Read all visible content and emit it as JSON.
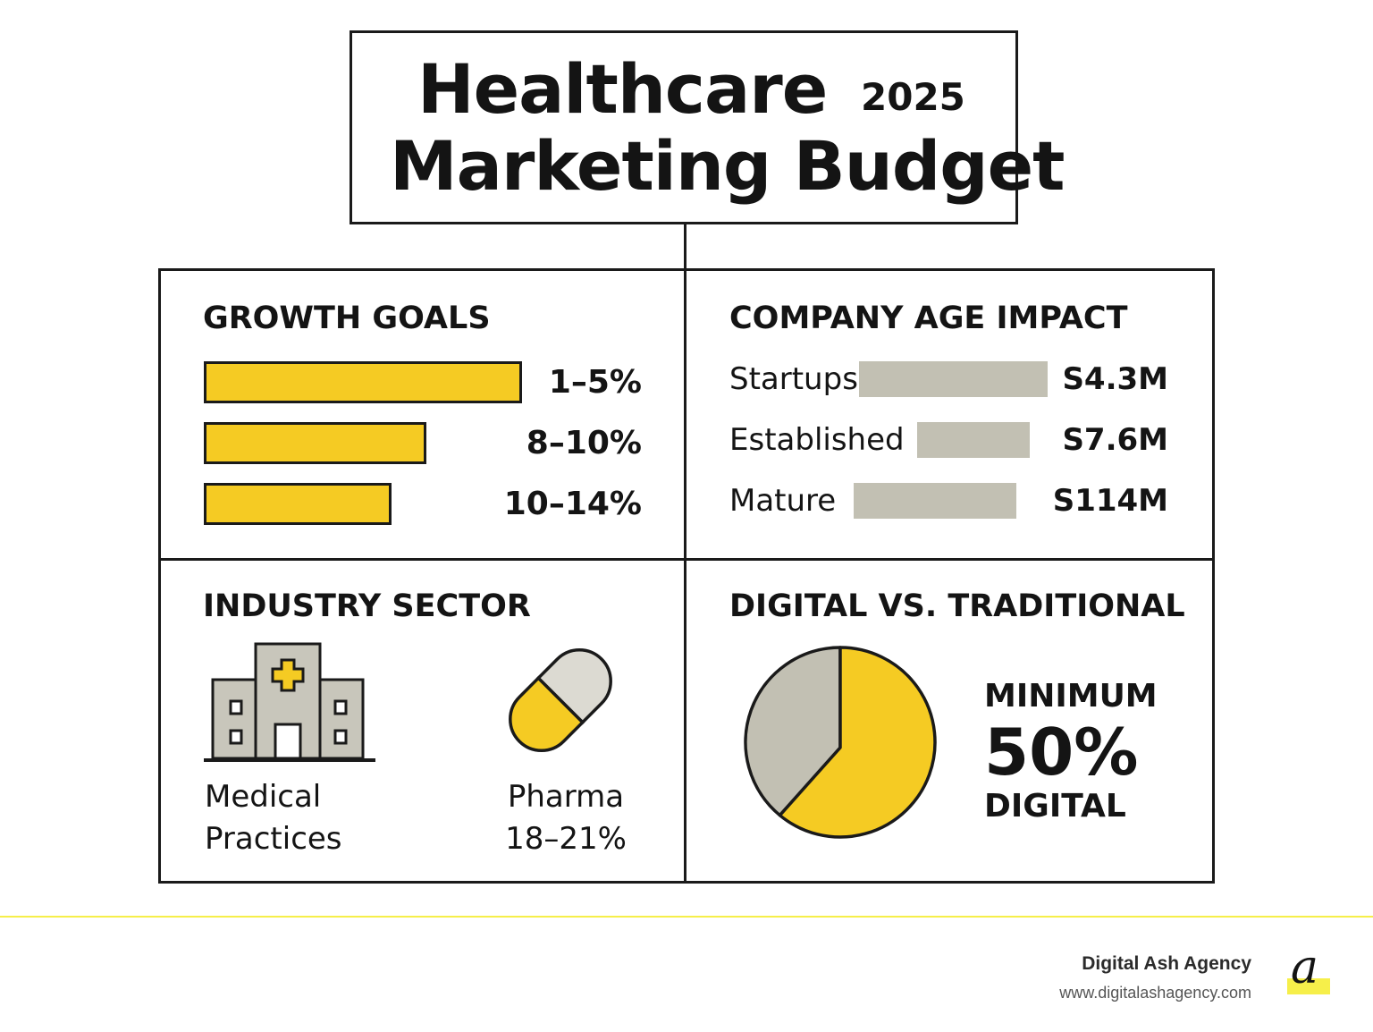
{
  "header": {
    "title_line1": "Healthcare",
    "year": "2025",
    "title_line2": "Marketing Budget"
  },
  "growth_goals": {
    "heading": "GROWTH GOALS",
    "items": [
      {
        "label": "1–5%",
        "relative_length": 1.0
      },
      {
        "label": "8–10%",
        "relative_length": 0.7
      },
      {
        "label": "10–14%",
        "relative_length": 0.59
      }
    ]
  },
  "company_age": {
    "heading": "COMPANY AGE IMPACT",
    "items": [
      {
        "label": "Startups",
        "amount": "S4.3M"
      },
      {
        "label": "Established",
        "amount": "S7.6M"
      },
      {
        "label": "Mature",
        "amount": "S114M"
      }
    ]
  },
  "industry_sector": {
    "heading": "INDUSTRY SECTOR",
    "medical_line1": "Medical",
    "medical_line2": "Practices",
    "pharma_line1": "Pharma",
    "pharma_line2": "18–21%"
  },
  "digital_vs_traditional": {
    "heading": "DIGITAL VS. TRADITIONAL",
    "minimum": "MINIMUM",
    "percent": "50%",
    "digital": "DIGITAL",
    "digital_share": 0.61
  },
  "footer": {
    "brand": "Digital Ash Agency",
    "url": "www.digitalashagency.com",
    "logo_glyph": "a"
  },
  "colors": {
    "accent_yellow": "#f5cb23",
    "neutral_gray": "#c2c0b3",
    "ink": "#1a1a1a",
    "footer_line": "#f6ef4a"
  }
}
